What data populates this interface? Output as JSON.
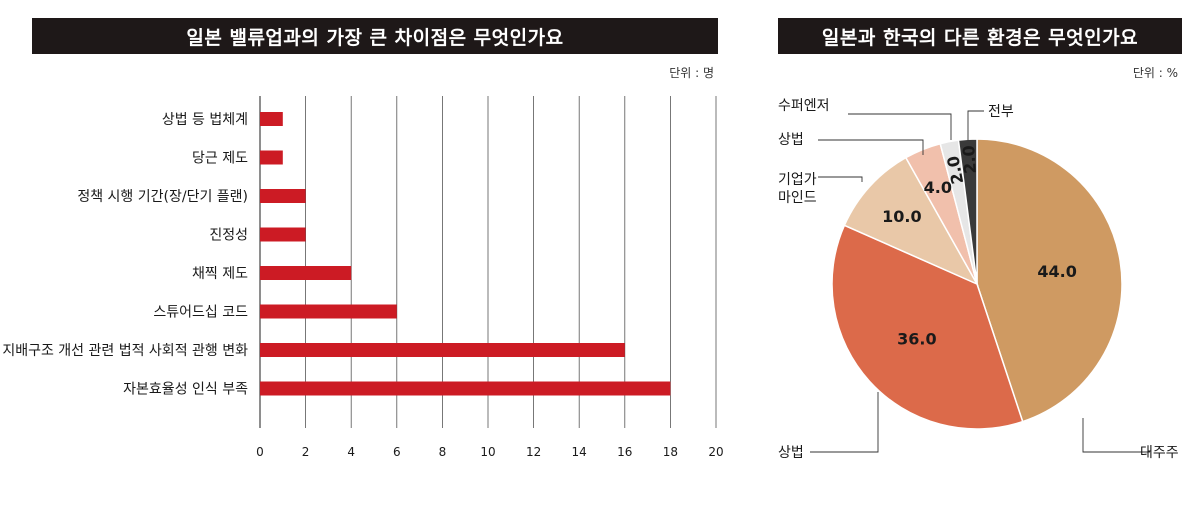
{
  "chart_data": [
    {
      "type": "bar",
      "orientation": "horizontal",
      "title": "일본 밸류업과의 가장 큰 차이점은 무엇인가요",
      "unit": "단위 : 명",
      "categories": [
        "상법 등 법체계",
        "당근 제도",
        "정책 시행 기간(장/단기 플랜)",
        "진정성",
        "채찍 제도",
        "스튜어드십 코드",
        "지배구조 개선 관련 법적 사회적 관행 변화",
        "자본효율성 인식 부족"
      ],
      "values": [
        1,
        1,
        2,
        2,
        4,
        6,
        16,
        18
      ],
      "xlim": [
        0,
        20
      ],
      "xticks": [
        0,
        2,
        4,
        6,
        8,
        10,
        12,
        14,
        16,
        18,
        20
      ],
      "grid": true,
      "bar_color": "#cc1b24"
    },
    {
      "type": "pie",
      "title": "일본과 한국의 다른 환경은 무엇인가요",
      "unit": "단위 : %",
      "slices": [
        {
          "label": "대주주",
          "value": 44.0,
          "display": "44.0",
          "color": "#cf9a62"
        },
        {
          "label": "상법",
          "value": 36.0,
          "display": "36.0",
          "color": "#dc6a4a"
        },
        {
          "label": "기업가 마인드",
          "value": 10.0,
          "display": "10.0",
          "color": "#e9c8a8"
        },
        {
          "label": "상법",
          "value": 4.0,
          "display": "4.0",
          "color": "#f1c0ac"
        },
        {
          "label": "수퍼엔저",
          "value": 2.0,
          "display": "2.0",
          "color": "#e6e6e6"
        },
        {
          "label": "전부",
          "value": 2.0,
          "display": "2.0",
          "color": "#3a3a3a"
        }
      ]
    }
  ]
}
